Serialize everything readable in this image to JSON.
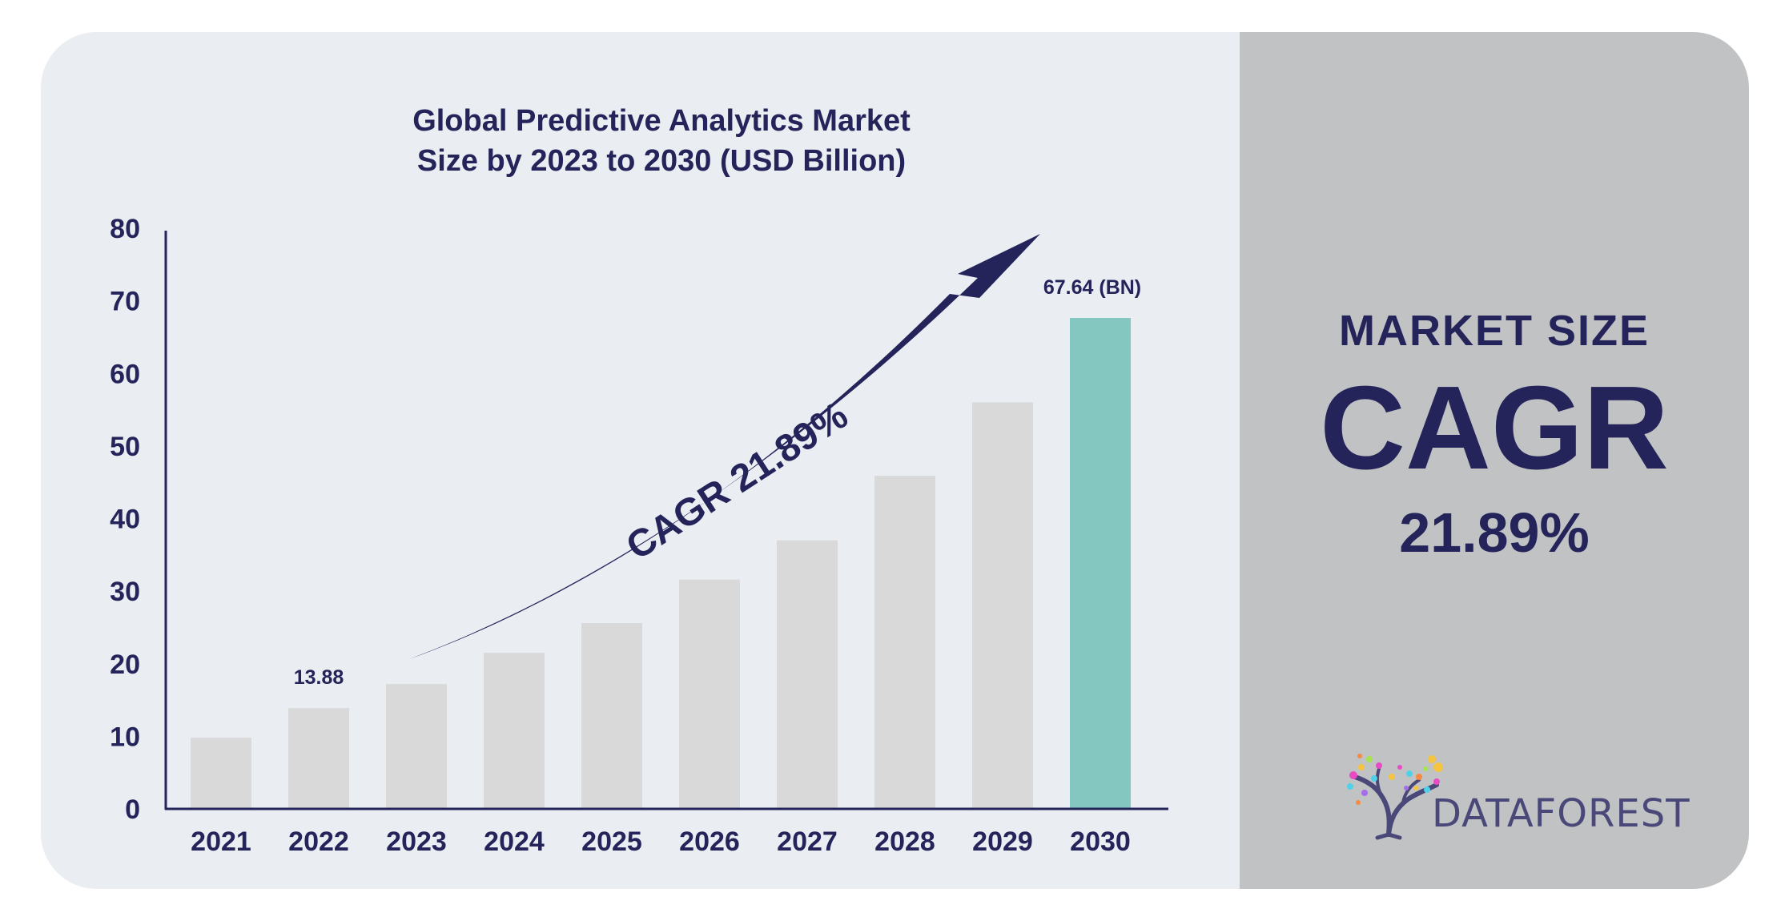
{
  "chart_data": {
    "type": "bar",
    "title": "Global Predictive Analytics Market Size by 2023 to 2030 (USD Billion)",
    "title_lines": [
      "Global Predictive Analytics Market",
      "Size by 2023 to 2030 (USD Billion)"
    ],
    "categories": [
      "2021",
      "2022",
      "2023",
      "2024",
      "2025",
      "2026",
      "2027",
      "2028",
      "2029",
      "2030"
    ],
    "values": [
      9.8,
      13.88,
      17.2,
      21.5,
      25.6,
      31.6,
      37,
      45.9,
      56,
      67.64
    ],
    "ylim": [
      0,
      80
    ],
    "yticks": [
      0,
      10,
      20,
      30,
      40,
      50,
      60,
      70,
      80
    ],
    "grid": false,
    "data_labels": [
      {
        "category": "2022",
        "text": "13.88"
      },
      {
        "category": "2030",
        "text": "67.64 (BN)"
      }
    ],
    "annotation": "CAGR 21.89%",
    "bar_color": "#d9d9d9",
    "highlight_category": "2030",
    "highlight_color": "#84c6c0",
    "axis_color": "#24235a",
    "text_color": "#24235a"
  },
  "side_panel": {
    "label": "MARKET SIZE",
    "headline": "CAGR",
    "value": "21.89%"
  },
  "logo": {
    "text": "DATAFOREST",
    "icon": "tree-icon"
  }
}
